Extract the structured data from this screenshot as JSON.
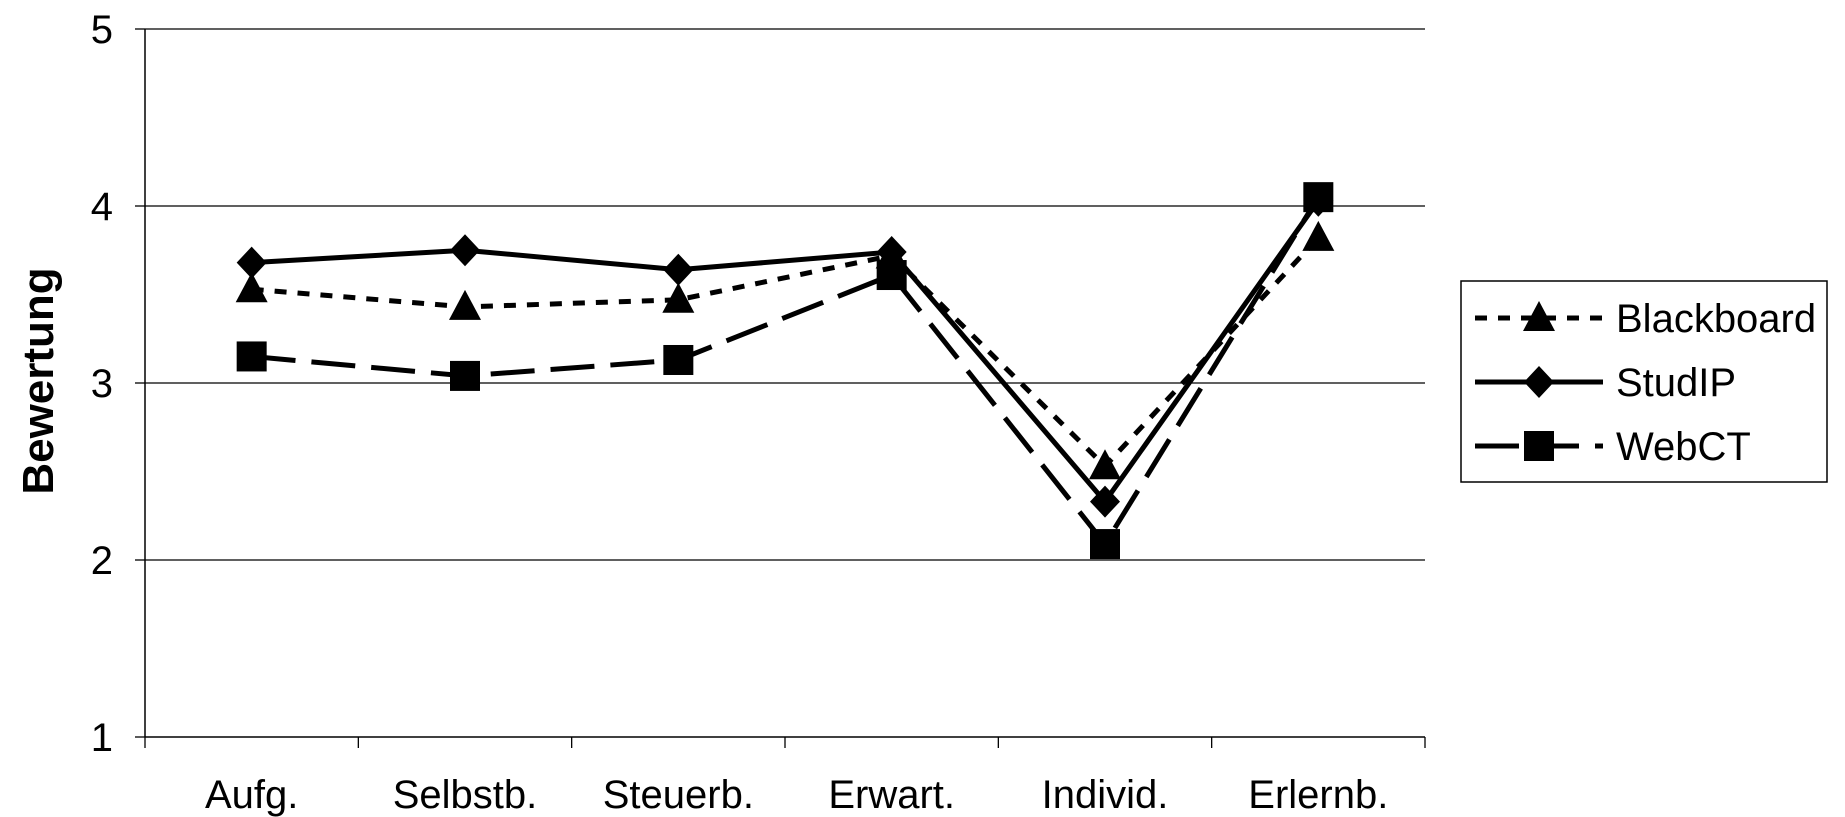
{
  "chart_data": {
    "type": "line",
    "title": "",
    "xlabel": "",
    "ylabel": "Bewertung",
    "categories": [
      "Aufg.",
      "Selbstb.",
      "Steuerb.",
      "Erwart.",
      "Individ.",
      "Erlernb."
    ],
    "ylim": [
      1,
      5
    ],
    "yticks": [
      1,
      2,
      3,
      4,
      5
    ],
    "grid": "horizontal",
    "legend_position": "right",
    "series": [
      {
        "name": "Blackboard",
        "marker": "triangle",
        "line_style": "dotted",
        "values": [
          3.53,
          3.43,
          3.47,
          3.72,
          2.53,
          3.82
        ]
      },
      {
        "name": "StudIP",
        "marker": "diamond",
        "line_style": "solid",
        "values": [
          3.68,
          3.75,
          3.64,
          3.74,
          2.33,
          4.03
        ]
      },
      {
        "name": "WebCT",
        "marker": "square",
        "line_style": "dashed",
        "values": [
          3.15,
          3.04,
          3.13,
          3.61,
          2.09,
          4.05
        ]
      }
    ]
  }
}
